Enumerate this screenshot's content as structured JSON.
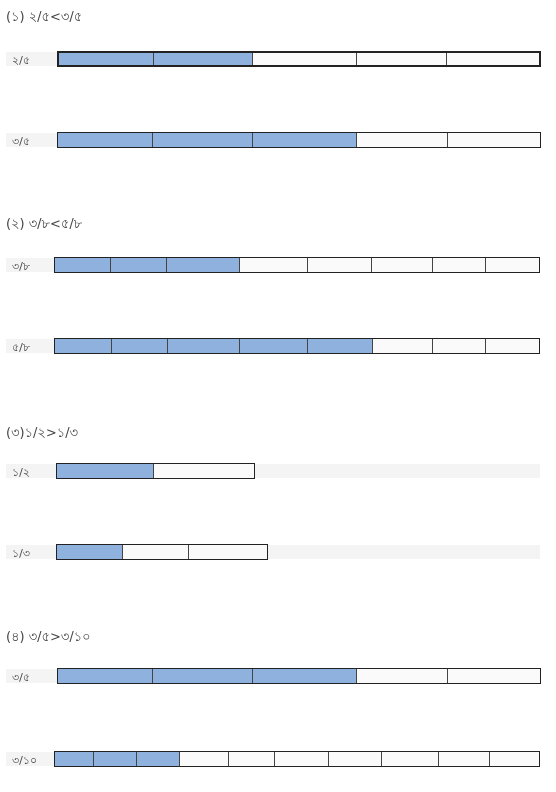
{
  "sections": [
    {
      "heading": "(১) ২/৫<৩/৫",
      "rows": [
        {
          "label": "২/৫",
          "total": 5,
          "filled": 2,
          "widths": [
            95,
            100,
            104,
            91,
            92
          ]
        },
        {
          "label": "৩/৫",
          "total": 5,
          "filled": 3,
          "widths": [
            95,
            100,
            104,
            91,
            92
          ]
        }
      ]
    },
    {
      "heading": "(২) ৩/৮<৫/৮",
      "rows": [
        {
          "label": "৩/৮",
          "total": 8,
          "filled": 3,
          "widths": [
            56,
            56,
            73,
            68,
            64,
            61,
            53,
            53
          ]
        },
        {
          "label": "৫/৮",
          "total": 8,
          "filled": 5,
          "widths": [
            57,
            56,
            72,
            68,
            65,
            60,
            53,
            53
          ]
        }
      ]
    },
    {
      "heading": "(৩)১/২>১/৩",
      "rows": [
        {
          "label": "১/২",
          "total": 2,
          "filled": 1,
          "widths": [
            97,
            100
          ]
        },
        {
          "label": "১/৩",
          "total": 3,
          "filled": 1,
          "widths": [
            66,
            66,
            78
          ]
        }
      ]
    },
    {
      "heading": "(৪) ৩/৫>৩/১০",
      "rows": [
        {
          "label": "৩/৫",
          "total": 5,
          "filled": 3,
          "widths": [
            95,
            100,
            104,
            91,
            92
          ]
        },
        {
          "label": "৩/১০",
          "total": 10,
          "filled": 3,
          "widths": [
            39,
            43,
            43,
            49,
            46,
            54,
            53,
            57,
            51,
            49
          ]
        }
      ]
    }
  ]
}
